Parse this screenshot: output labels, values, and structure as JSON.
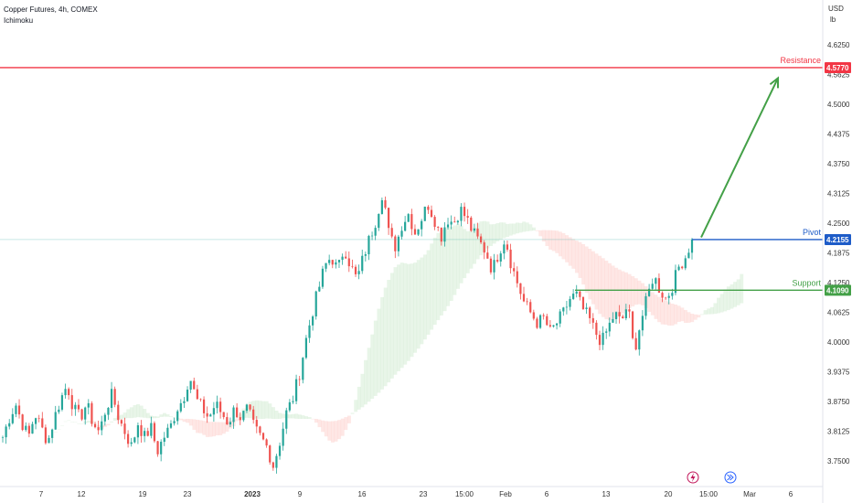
{
  "header": {
    "symbol_line": "Copper Futures, 4h, COMEX",
    "indicator": "Ichimoku"
  },
  "axis": {
    "currency": "USD",
    "unit": "lb"
  },
  "colors": {
    "resistance": "#f23645",
    "pivot": "#1e5cc8",
    "support": "#43a047",
    "arrow": "#43a047",
    "candle_up": "#26a69a",
    "candle_down": "#ef5350",
    "cloud_bull": "#4caf50",
    "cloud_bear": "#f44336",
    "price_line": "#26a69a"
  },
  "events": {
    "lightning_icon": "lightning-icon",
    "forward_icon": "fast-forward-icon"
  },
  "chart_data": {
    "type": "candlestick",
    "ylim": [
      3.72,
      4.69
    ],
    "y_ticks": [
      "4.6250",
      "4.5625",
      "4.5000",
      "4.4375",
      "4.3750",
      "4.3125",
      "4.2500",
      "4.1875",
      "4.1250",
      "4.0625",
      "4.0000",
      "3.9375",
      "3.8750",
      "3.8125",
      "3.7500"
    ],
    "x_ticks": [
      "7",
      "12",
      "19",
      "23",
      "2023",
      "9",
      "16",
      "23",
      "15:00",
      "Feb",
      "6",
      "13",
      "20",
      "15:00",
      "Mar",
      "6"
    ],
    "levels": [
      {
        "name": "Resistance",
        "value": 4.577,
        "tag": "4.5770"
      },
      {
        "name": "Pivot",
        "value": 4.2155,
        "tag": "4.2155"
      },
      {
        "name": "Support",
        "value": 4.109,
        "tag": "4.1090"
      }
    ],
    "arrow": {
      "from_value": 4.22,
      "to_value": 4.555
    },
    "last_price": 4.2155,
    "path": [
      3.8,
      3.84,
      3.87,
      3.83,
      3.8,
      3.85,
      3.82,
      3.79,
      3.84,
      3.88,
      3.91,
      3.86,
      3.84,
      3.87,
      3.83,
      3.81,
      3.86,
      3.89,
      3.84,
      3.81,
      3.78,
      3.83,
      3.8,
      3.82,
      3.77,
      3.8,
      3.82,
      3.86,
      3.88,
      3.93,
      3.88,
      3.86,
      3.84,
      3.87,
      3.85,
      3.83,
      3.86,
      3.84,
      3.86,
      3.82,
      3.8,
      3.78,
      3.74,
      3.79,
      3.85,
      3.88,
      3.93,
      4.0,
      4.06,
      4.11,
      4.16,
      4.18,
      4.15,
      4.2,
      4.16,
      4.13,
      4.18,
      4.22,
      4.26,
      4.32,
      4.22,
      4.2,
      4.25,
      4.27,
      4.23,
      4.26,
      4.29,
      4.26,
      4.22,
      4.26,
      4.25,
      4.28,
      4.26,
      4.23,
      4.21,
      4.19,
      4.15,
      4.19,
      4.22,
      4.16,
      4.12,
      4.08,
      4.06,
      4.04,
      4.05,
      4.02,
      4.04,
      4.06,
      4.09,
      4.1,
      4.07,
      4.05,
      4.02,
      4.0,
      4.03,
      4.06,
      4.04,
      4.08,
      3.98,
      4.04,
      4.09,
      4.14,
      4.11,
      4.09,
      4.12,
      4.16,
      4.18,
      4.2155
    ]
  }
}
